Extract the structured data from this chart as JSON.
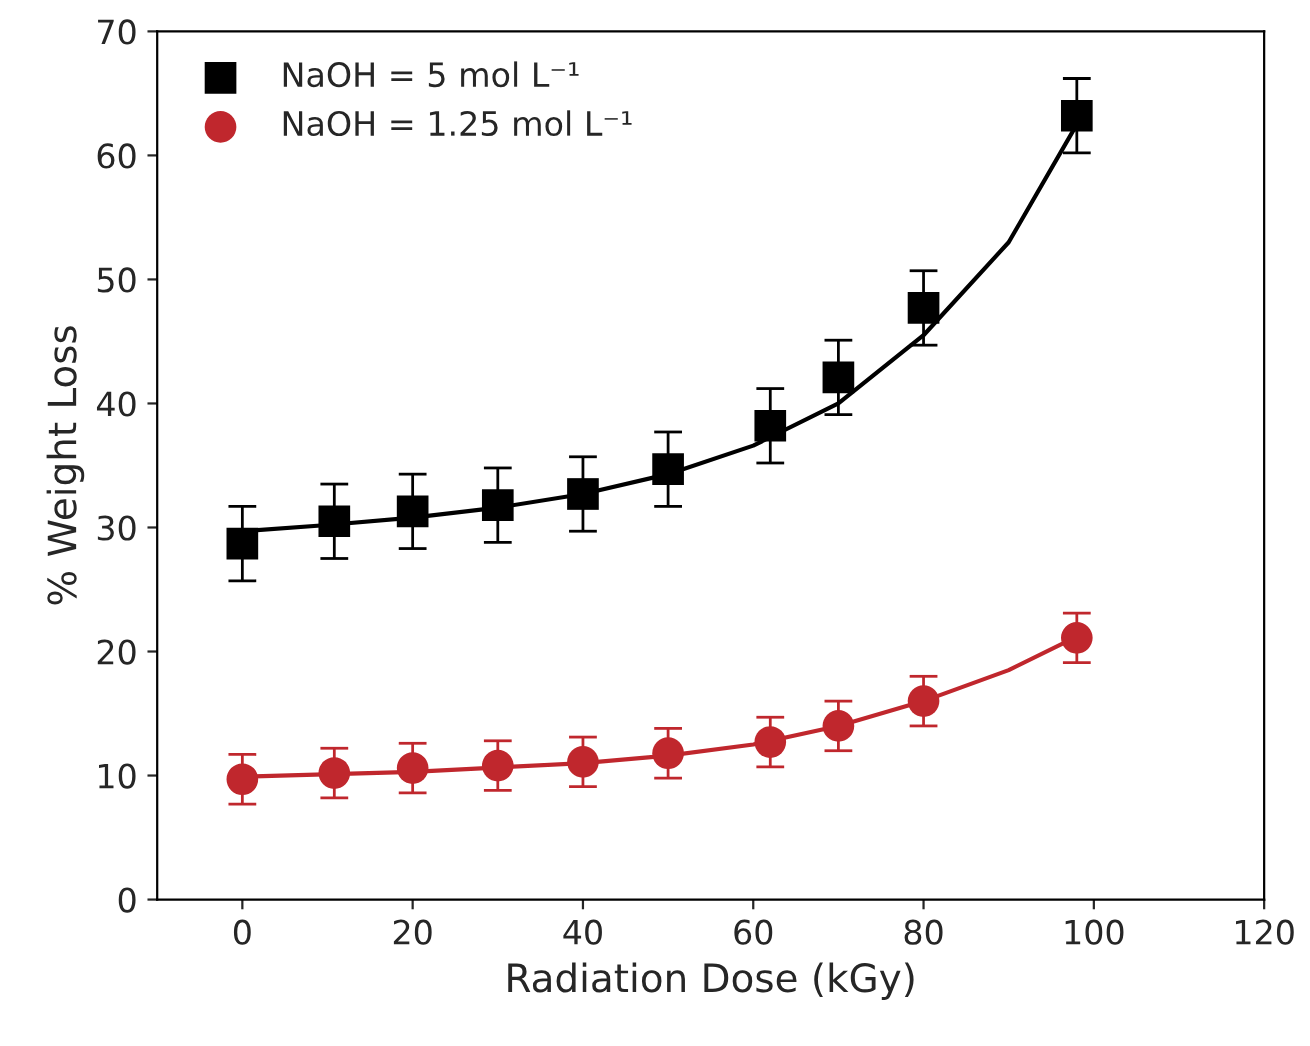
{
  "chart_data": {
    "type": "scatter",
    "xlabel": "Radiation Dose (kGy)",
    "ylabel": "% Weight Loss",
    "xlim": [
      -10,
      120
    ],
    "xticks": [
      0,
      20,
      40,
      60,
      80,
      100,
      120
    ],
    "ylim": [
      0,
      70
    ],
    "yticks": [
      0,
      10,
      20,
      30,
      40,
      50,
      60,
      70
    ],
    "grid": false,
    "legend": "top left",
    "series": [
      {
        "name": "NaOH = 5 mol L⁻¹",
        "color": "#000000",
        "marker": "square",
        "x": [
          0,
          10.8,
          20,
          30,
          40,
          50,
          62,
          70,
          80,
          98
        ],
        "values": [
          28.7,
          30.5,
          31.3,
          31.8,
          32.7,
          34.7,
          38.2,
          42.1,
          47.7,
          63.2
        ],
        "errors": [
          3,
          3,
          3,
          3,
          3,
          3,
          3,
          3,
          3,
          3
        ]
      },
      {
        "name": "NaOH = 1.25 mol L⁻¹",
        "color": "#c0272d",
        "marker": "circle",
        "x": [
          0,
          10.8,
          20,
          30,
          40,
          50,
          62,
          70,
          80,
          98
        ],
        "values": [
          9.7,
          10.2,
          10.6,
          10.8,
          11.1,
          11.8,
          12.7,
          14.0,
          16.0,
          21.1
        ],
        "errors": [
          2,
          2,
          2,
          2,
          2,
          2,
          2,
          2,
          2,
          2
        ]
      },
      {
        "type": "line",
        "color": "#000000",
        "line_style": "solid",
        "marker": "none",
        "x": [
          0,
          10,
          20,
          30,
          40,
          50,
          60,
          70,
          80,
          90,
          98
        ],
        "values": [
          29.7,
          30.2,
          30.8,
          31.6,
          32.7,
          34.3,
          36.6,
          40.0,
          45.5,
          53.0,
          62.5
        ]
      },
      {
        "type": "line",
        "color": "#c0272d",
        "line_style": "solid",
        "marker": "none",
        "x": [
          0,
          20,
          40,
          50,
          60,
          70,
          80,
          90,
          98
        ],
        "values": [
          9.9,
          10.3,
          11.0,
          11.6,
          12.5,
          14.0,
          16.0,
          18.5,
          21.2
        ]
      }
    ]
  }
}
